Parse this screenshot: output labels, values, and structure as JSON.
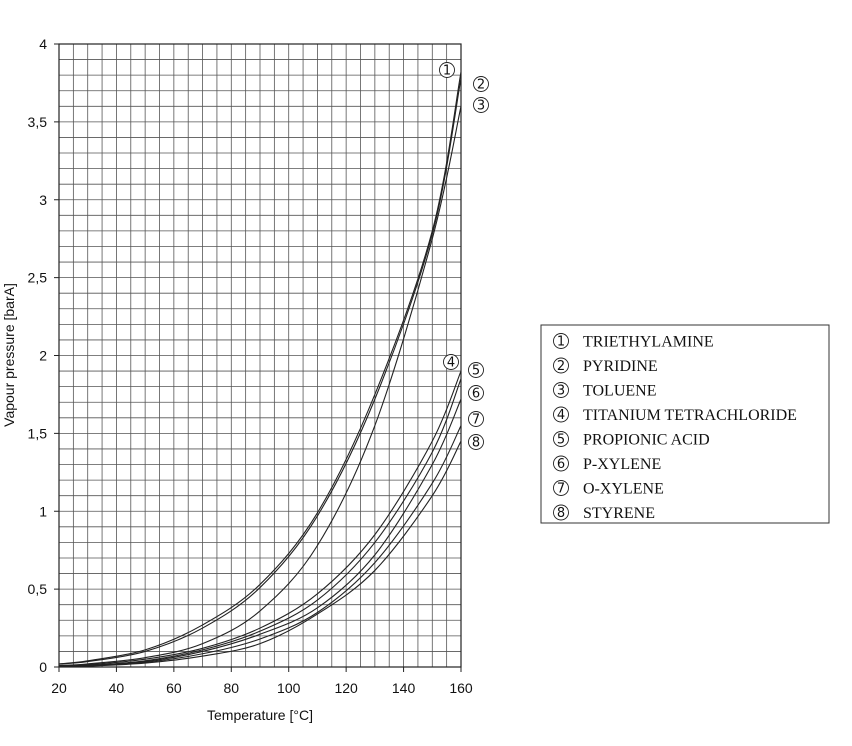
{
  "chart_data": {
    "type": "line",
    "title": "",
    "xlabel": "Temperature [°C]",
    "ylabel": "Vapour pressure [barA]",
    "xlim": [
      20,
      160
    ],
    "ylim": [
      0,
      4
    ],
    "x_ticks": [
      20,
      40,
      60,
      80,
      100,
      120,
      140,
      160
    ],
    "x_tick_labels": [
      "20",
      "40",
      "60",
      "80",
      "100",
      "120",
      "140",
      "160"
    ],
    "y_ticks": [
      0,
      0.5,
      1,
      1.5,
      2,
      2.5,
      3,
      3.5,
      4
    ],
    "y_tick_labels": [
      "0",
      "0,5",
      "1",
      "1,5",
      "2",
      "2,5",
      "3",
      "3,5",
      "4"
    ],
    "minor_grid_x_step": 5,
    "minor_grid_y_step": 0.1,
    "grid": true,
    "legend_position": "right",
    "line_color": "#222222",
    "grid_color": "#555555",
    "series": [
      {
        "name": "TRIETHYLAMINE",
        "marker": "①",
        "x": [
          20,
          30,
          50,
          70,
          90,
          110,
          130,
          150,
          160
        ],
        "y": [
          0.02,
          0.04,
          0.11,
          0.27,
          0.53,
          0.99,
          1.75,
          2.8,
          3.82
        ]
      },
      {
        "name": "PYRIDINE",
        "marker": "②",
        "x": [
          20,
          30,
          50,
          70,
          90,
          110,
          130,
          150,
          160
        ],
        "y": [
          0.02,
          0.035,
          0.1,
          0.25,
          0.51,
          0.97,
          1.72,
          2.78,
          3.78
        ]
      },
      {
        "name": "TOLUENE",
        "marker": "③",
        "x": [
          20,
          30,
          50,
          70,
          90,
          110,
          130,
          150,
          160
        ],
        "y": [
          0.01,
          0.02,
          0.06,
          0.15,
          0.36,
          0.78,
          1.55,
          2.75,
          3.6
        ]
      },
      {
        "name": "TITANIUM TETRACHLORIDE",
        "marker": "④",
        "x": [
          20,
          30,
          50,
          70,
          90,
          110,
          130,
          150,
          160
        ],
        "y": [
          0.01,
          0.015,
          0.05,
          0.12,
          0.25,
          0.47,
          0.85,
          1.45,
          1.9
        ]
      },
      {
        "name": "PROPIONIC ACID",
        "marker": "⑤",
        "x": [
          20,
          30,
          50,
          70,
          90,
          110,
          130,
          150,
          160
        ],
        "y": [
          0.005,
          0.01,
          0.04,
          0.11,
          0.23,
          0.43,
          0.8,
          1.38,
          1.85
        ]
      },
      {
        "name": "P-XYLENE",
        "marker": "⑥",
        "x": [
          20,
          30,
          50,
          70,
          90,
          110,
          130,
          150,
          160
        ],
        "y": [
          0.005,
          0.01,
          0.035,
          0.1,
          0.21,
          0.38,
          0.72,
          1.3,
          1.72
        ]
      },
      {
        "name": "O-XYLENE",
        "marker": "⑦",
        "x": [
          20,
          30,
          50,
          70,
          90,
          110,
          130,
          150,
          160
        ],
        "y": [
          0.004,
          0.008,
          0.03,
          0.085,
          0.18,
          0.35,
          0.67,
          1.18,
          1.55
        ]
      },
      {
        "name": "STYRENE",
        "marker": "⑧",
        "x": [
          20,
          30,
          50,
          70,
          90,
          110,
          130,
          150,
          160
        ],
        "y": [
          0.003,
          0.006,
          0.025,
          0.07,
          0.15,
          0.34,
          0.62,
          1.1,
          1.45
        ]
      }
    ]
  }
}
